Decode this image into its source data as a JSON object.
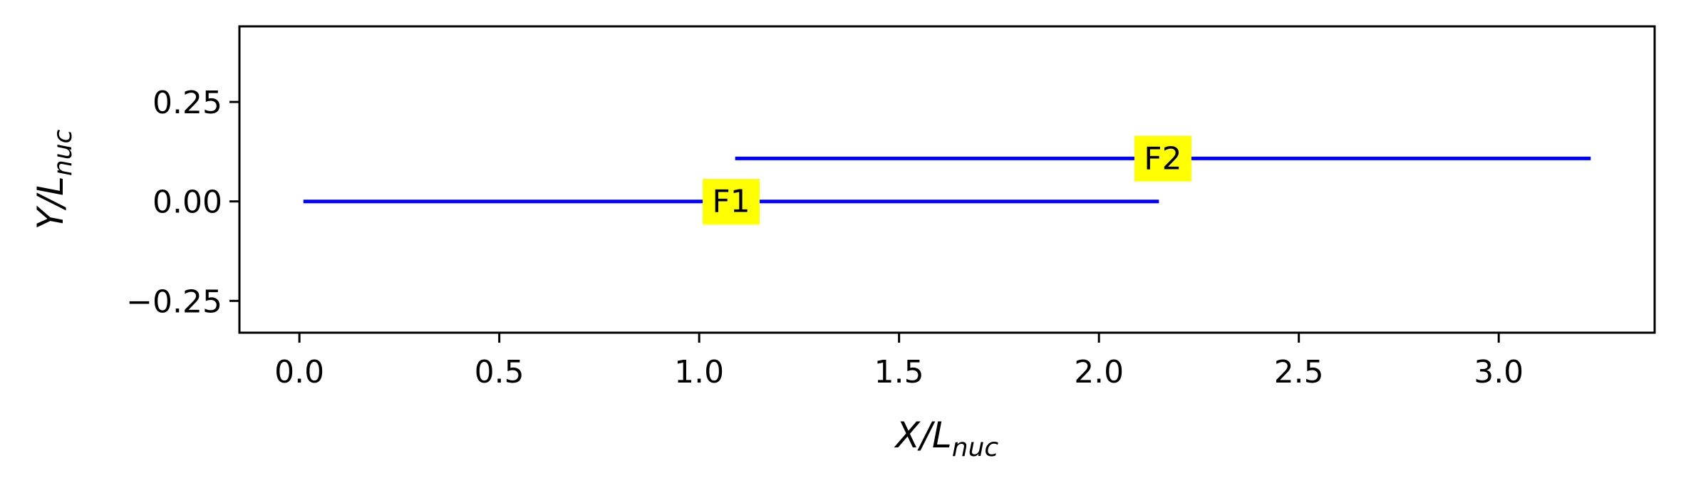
{
  "chart_data": {
    "type": "line",
    "title": "",
    "xlabel": {
      "main": "X/L",
      "sub": "nuc"
    },
    "ylabel": {
      "main": "Y/L",
      "sub": "nuc"
    },
    "xlim": [
      -0.15,
      3.39
    ],
    "ylim": [
      -0.33,
      0.44
    ],
    "xticks": [
      0.0,
      0.5,
      1.0,
      1.5,
      2.0,
      2.5,
      3.0
    ],
    "xtick_labels": [
      "0.0",
      "0.5",
      "1.0",
      "1.5",
      "2.0",
      "2.5",
      "3.0"
    ],
    "yticks": [
      -0.25,
      0.0,
      0.25
    ],
    "ytick_labels": [
      "−0.25",
      "0.00",
      "0.25"
    ],
    "grid": false,
    "series": [
      {
        "x": [
          0.01,
          2.15
        ],
        "y": [
          0.0,
          0.0
        ],
        "color": "#0000ff"
      },
      {
        "x": [
          1.09,
          3.23
        ],
        "y": [
          0.108,
          0.108
        ],
        "color": "#0000ff"
      }
    ],
    "annotations": [
      {
        "text": "F1",
        "x": 1.08,
        "y": 0.0,
        "background": "#ffff00"
      },
      {
        "text": "F2",
        "x": 2.16,
        "y": 0.108,
        "background": "#ffff00"
      }
    ]
  }
}
